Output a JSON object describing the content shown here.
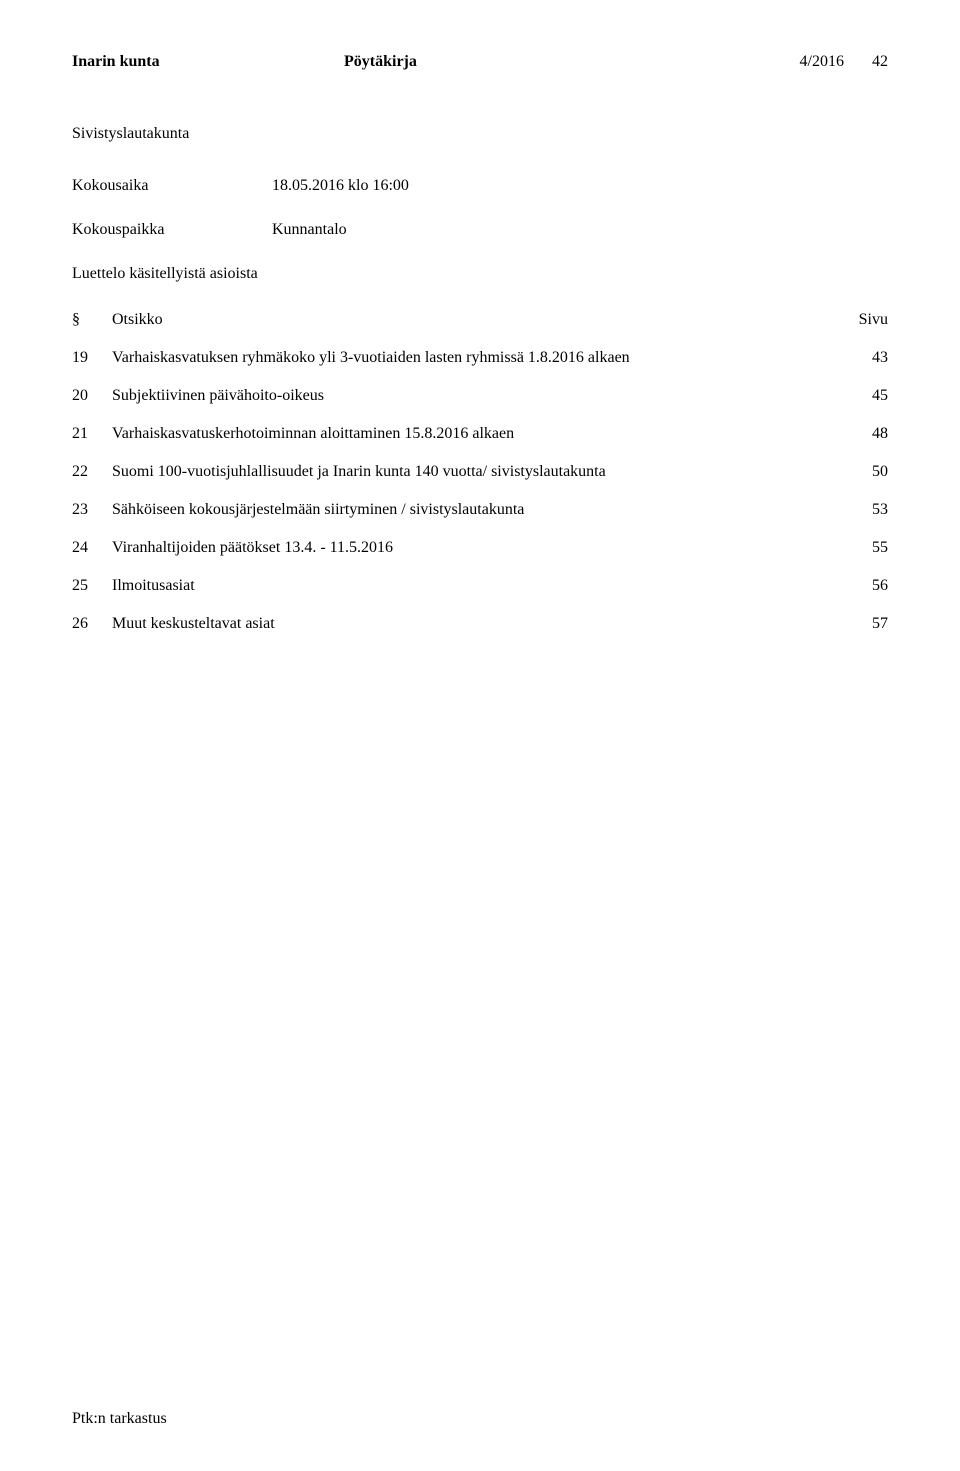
{
  "header": {
    "org": "Inarin kunta",
    "doctype": "Pöytäkirja",
    "docnum": "4/2016",
    "pagenum": "42"
  },
  "committee": "Sivistyslautakunta",
  "meta": {
    "kokousaika_label": "Kokousaika",
    "kokousaika_value": "18.05.2016 klo 16:00",
    "kokouspaikka_label": "Kokouspaikka",
    "kokouspaikka_value": "Kunnantalo"
  },
  "toc": {
    "subheading": "Luettelo käsitellyistä asioista",
    "col_section": "§",
    "col_title": "Otsikko",
    "col_page": "Sivu",
    "rows": [
      {
        "num": "19",
        "title": "Varhaiskasvatuksen ryhmäkoko yli 3-vuotiaiden lasten ryhmissä 1.8.2016 alkaen",
        "page": "43"
      },
      {
        "num": "20",
        "title": "Subjektiivinen päivähoito-oikeus",
        "page": "45"
      },
      {
        "num": "21",
        "title": "Varhaiskasvatuskerhotoiminnan aloittaminen 15.8.2016 alkaen",
        "page": "48"
      },
      {
        "num": "22",
        "title": "Suomi 100-vuotisjuhlallisuudet ja Inarin kunta 140 vuotta/ sivistyslautakunta",
        "page": "50"
      },
      {
        "num": "23",
        "title": "Sähköiseen kokousjärjestelmään siirtyminen / sivistyslautakunta",
        "page": "53"
      },
      {
        "num": "24",
        "title": "Viranhaltijoiden päätökset 13.4. - 11.5.2016",
        "page": "55"
      },
      {
        "num": "25",
        "title": "Ilmoitusasiat",
        "page": "56"
      },
      {
        "num": "26",
        "title": "Muut keskusteltavat asiat",
        "page": "57"
      }
    ]
  },
  "footer": "Ptk:n tarkastus"
}
